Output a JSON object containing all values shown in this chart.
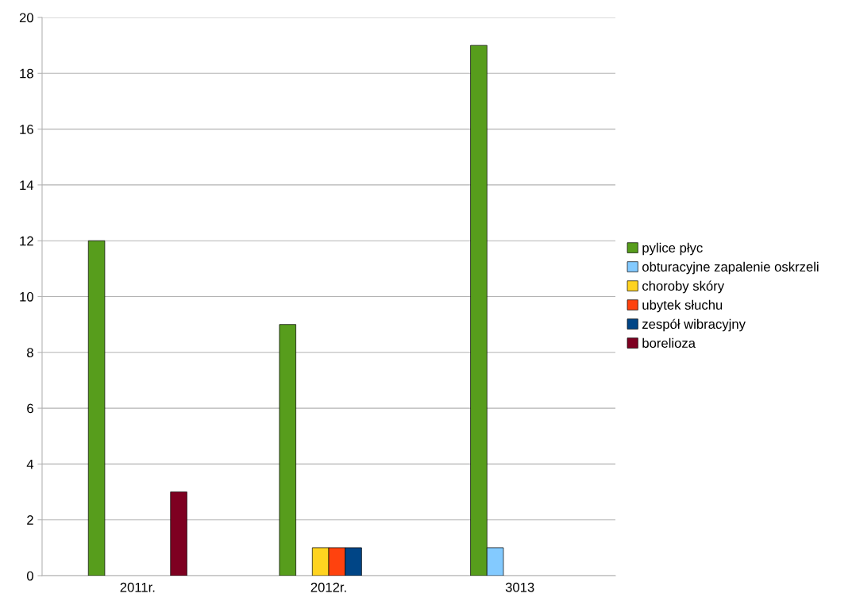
{
  "chart_data": {
    "type": "bar",
    "categories": [
      "2011r.",
      "2012r.",
      "3013"
    ],
    "series": [
      {
        "name": "pylice płyc",
        "color": "#579d1c",
        "values": [
          12,
          9,
          19
        ]
      },
      {
        "name": "obturacyjne zapalenie oskrzeli",
        "color": "#83caff",
        "values": [
          null,
          null,
          1
        ]
      },
      {
        "name": "choroby skóry",
        "color": "#ffd320",
        "values": [
          null,
          1,
          null
        ]
      },
      {
        "name": "ubytek słuchu",
        "color": "#ff420e",
        "values": [
          null,
          1,
          null
        ]
      },
      {
        "name": "zespół wibracyjny",
        "color": "#004586",
        "values": [
          null,
          1,
          null
        ]
      },
      {
        "name": "borelioza",
        "color": "#7e0021",
        "values": [
          3,
          null,
          null
        ]
      }
    ],
    "ylim": [
      0,
      20
    ],
    "yticks": [
      0,
      2,
      4,
      6,
      8,
      10,
      12,
      14,
      16,
      18,
      20
    ],
    "grid": "y",
    "legend": "right"
  }
}
